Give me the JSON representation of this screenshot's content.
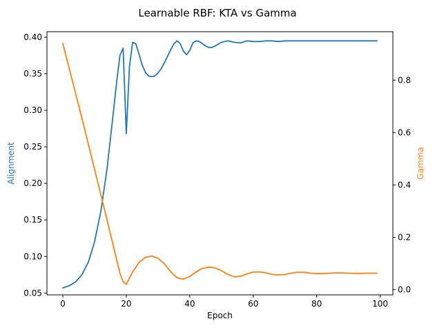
{
  "colors": {
    "left_series": "#1f77b4",
    "right_series": "#ff7f0e",
    "axis": "#000000",
    "background": "#ffffff"
  },
  "chart_data": {
    "type": "line",
    "title": "Learnable RBF: KTA vs Gamma",
    "xlabel": "Epoch",
    "ylabel_left": "Alignment",
    "ylabel_right": "Gamma",
    "xlim": [
      -5,
      104
    ],
    "ylim_left": [
      0.0475,
      0.4075
    ],
    "ylim_right": [
      -0.02,
      0.985
    ],
    "x_ticks": [
      0,
      20,
      40,
      60,
      80,
      100
    ],
    "x_tick_labels": [
      "0",
      "20",
      "40",
      "60",
      "80",
      "100"
    ],
    "y_left_ticks": [
      0.05,
      0.1,
      0.15,
      0.2,
      0.25,
      0.3,
      0.35,
      0.4
    ],
    "y_left_tick_labels": [
      "0.05",
      "0.10",
      "0.15",
      "0.20",
      "0.25",
      "0.30",
      "0.35",
      "0.40"
    ],
    "y_right_ticks": [
      0.0,
      0.2,
      0.4,
      0.6,
      0.8
    ],
    "y_right_tick_labels": [
      "0.0",
      "0.2",
      "0.4",
      "0.6",
      "0.8"
    ],
    "grid": false,
    "series": [
      {
        "axis": "left",
        "x": [
          0,
          2,
          4,
          6,
          8,
          10,
          12,
          14,
          16,
          17,
          18,
          19,
          20,
          21,
          22,
          23,
          24,
          25,
          26,
          27,
          28,
          29,
          30,
          31,
          32,
          33,
          34,
          35,
          36,
          37,
          38,
          39,
          40,
          41,
          42,
          43,
          44,
          45,
          46,
          47,
          48,
          50,
          52,
          54,
          56,
          58,
          60,
          62,
          64,
          66,
          68,
          70,
          72,
          74,
          76,
          78,
          80,
          85,
          90,
          95,
          99
        ],
        "y": [
          0.057,
          0.06,
          0.065,
          0.075,
          0.092,
          0.12,
          0.162,
          0.222,
          0.3,
          0.34,
          0.375,
          0.385,
          0.268,
          0.36,
          0.393,
          0.391,
          0.377,
          0.362,
          0.352,
          0.347,
          0.346,
          0.347,
          0.351,
          0.357,
          0.365,
          0.374,
          0.383,
          0.391,
          0.395,
          0.391,
          0.381,
          0.376,
          0.382,
          0.392,
          0.395,
          0.394,
          0.391,
          0.388,
          0.386,
          0.386,
          0.388,
          0.393,
          0.395,
          0.393,
          0.392,
          0.395,
          0.394,
          0.394,
          0.395,
          0.395,
          0.394,
          0.395,
          0.395,
          0.395,
          0.395,
          0.395,
          0.395,
          0.395,
          0.395,
          0.395,
          0.395
        ]
      },
      {
        "axis": "right",
        "x": [
          0,
          2,
          4,
          6,
          8,
          10,
          12,
          14,
          16,
          17,
          18,
          19,
          20,
          22,
          24,
          26,
          28,
          30,
          32,
          34,
          36,
          38,
          40,
          42,
          44,
          46,
          48,
          50,
          52,
          54,
          56,
          58,
          60,
          62,
          64,
          66,
          68,
          70,
          72,
          74,
          76,
          78,
          80,
          82,
          84,
          86,
          88,
          90,
          92,
          94,
          96,
          99
        ],
        "y": [
          0.94,
          0.845,
          0.75,
          0.655,
          0.557,
          0.46,
          0.362,
          0.263,
          0.163,
          0.113,
          0.063,
          0.03,
          0.02,
          0.068,
          0.103,
          0.123,
          0.128,
          0.12,
          0.098,
          0.068,
          0.045,
          0.04,
          0.05,
          0.068,
          0.081,
          0.086,
          0.083,
          0.072,
          0.058,
          0.049,
          0.051,
          0.06,
          0.067,
          0.068,
          0.064,
          0.058,
          0.056,
          0.058,
          0.063,
          0.066,
          0.066,
          0.063,
          0.061,
          0.061,
          0.063,
          0.064,
          0.064,
          0.063,
          0.062,
          0.062,
          0.063,
          0.063
        ]
      }
    ]
  }
}
